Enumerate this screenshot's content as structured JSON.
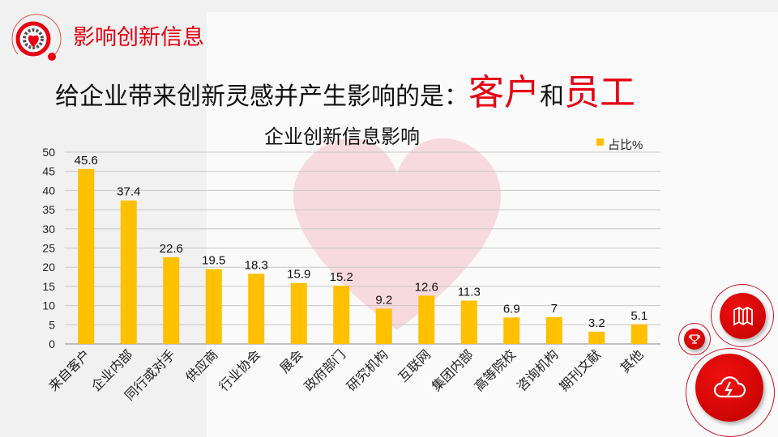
{
  "header": {
    "section_title": "影响创新信息",
    "headline_prefix": "给企业带来创新灵感并产生影响的是：",
    "headline_red1": "客户",
    "headline_mid": "和",
    "headline_red2": "员工"
  },
  "colors": {
    "accent": "#e60012",
    "bar": "#ffc000"
  },
  "icons": [
    "map-icon",
    "trophy-icon",
    "cloud-lightning-icon"
  ],
  "chart_data": {
    "type": "bar",
    "title": "企业创新信息影响",
    "legend": {
      "label": "占比%",
      "position": "top-right"
    },
    "categories": [
      "来自客户",
      "企业内部",
      "同行或对手",
      "供应商",
      "行业协会",
      "展会",
      "政府部门",
      "研究机构",
      "互联网",
      "集团内部",
      "高等院校",
      "咨询机构",
      "期刊文献",
      "其他"
    ],
    "values": [
      45.6,
      37.4,
      22.6,
      19.5,
      18.3,
      15.9,
      15.2,
      9.2,
      12.6,
      11.3,
      6.9,
      7,
      3.2,
      5.1
    ],
    "ylim": [
      0,
      50
    ],
    "yticks": [
      0,
      5,
      10,
      15,
      20,
      25,
      30,
      35,
      40,
      45,
      50
    ],
    "grid": true
  }
}
